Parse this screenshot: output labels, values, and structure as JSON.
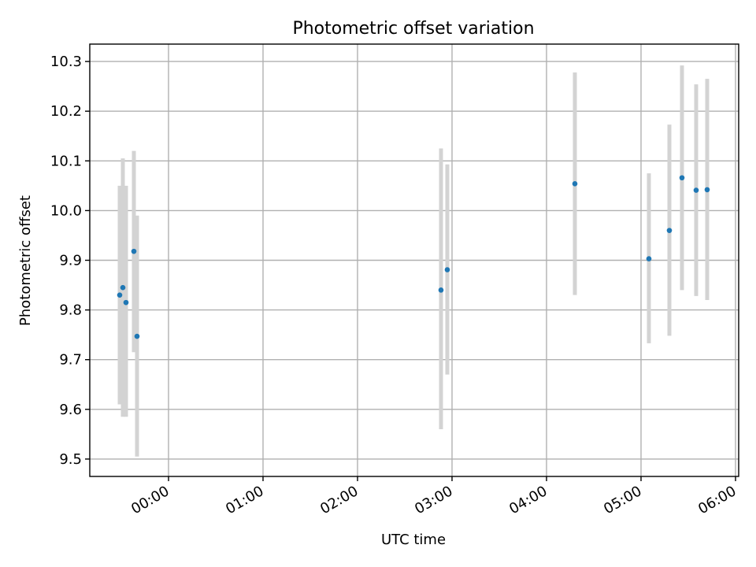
{
  "chart_data": {
    "type": "scatter",
    "title": "Photometric offset variation",
    "xlabel": "UTC time",
    "ylabel": "Photometric offset",
    "grid": true,
    "xlim": [
      "-00:50",
      "06:02"
    ],
    "ylim": [
      9.465,
      10.335
    ],
    "x_ticks": [
      "00:00",
      "01:00",
      "02:00",
      "03:00",
      "04:00",
      "05:00",
      "06:00"
    ],
    "y_ticks": [
      "9.5",
      "9.6",
      "9.7",
      "9.8",
      "9.9",
      "10.0",
      "10.1",
      "10.2",
      "10.3"
    ],
    "errorbar_color": "#d3d3d3",
    "marker_color": "#1f77b4",
    "series": [
      {
        "points": [
          {
            "x": "-00:31",
            "y": 9.83,
            "err_low": 9.61,
            "err_high": 10.05
          },
          {
            "x": "-00:29",
            "y": 9.845,
            "err_low": 9.585,
            "err_high": 10.105
          },
          {
            "x": "-00:27",
            "y": 9.815,
            "err_low": 9.585,
            "err_high": 10.05
          },
          {
            "x": "-00:22",
            "y": 9.918,
            "err_low": 9.715,
            "err_high": 10.12
          },
          {
            "x": "-00:20",
            "y": 9.747,
            "err_low": 9.505,
            "err_high": 9.99
          },
          {
            "x": "02:53",
            "y": 9.84,
            "err_low": 9.56,
            "err_high": 10.125
          },
          {
            "x": "02:57",
            "y": 9.881,
            "err_low": 9.67,
            "err_high": 10.093
          },
          {
            "x": "04:18",
            "y": 10.054,
            "err_low": 9.83,
            "err_high": 10.278
          },
          {
            "x": "05:05",
            "y": 9.903,
            "err_low": 9.733,
            "err_high": 10.075
          },
          {
            "x": "05:18",
            "y": 9.96,
            "err_low": 9.748,
            "err_high": 10.173
          },
          {
            "x": "05:26",
            "y": 10.066,
            "err_low": 9.84,
            "err_high": 10.292
          },
          {
            "x": "05:35",
            "y": 10.041,
            "err_low": 9.828,
            "err_high": 10.254
          },
          {
            "x": "05:42",
            "y": 10.042,
            "err_low": 9.82,
            "err_high": 10.265
          }
        ]
      }
    ]
  }
}
